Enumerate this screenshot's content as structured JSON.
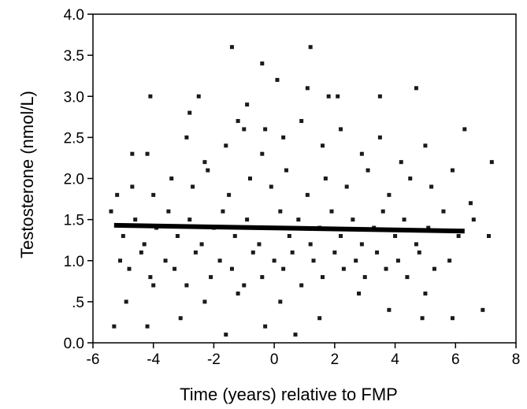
{
  "chart_data": {
    "type": "scatter",
    "title": "",
    "xlabel": "Time (years) relative to FMP",
    "ylabel": "Testosterone (nmol/L)",
    "xlim": [
      -6,
      8
    ],
    "ylim": [
      0.0,
      4.0
    ],
    "xticks": [
      -6,
      -4,
      -2,
      0,
      2,
      4,
      6,
      8
    ],
    "xtick_labels": [
      "-6",
      "-4",
      "-2",
      "0",
      "2",
      "4",
      "6",
      "8"
    ],
    "yticks": [
      0.0,
      0.5,
      1.0,
      1.5,
      2.0,
      2.5,
      3.0,
      3.5,
      4.0
    ],
    "ytick_labels": [
      "0.0",
      ".5",
      "1.0",
      "1.5",
      "2.0",
      "2.5",
      "3.0",
      "3.5",
      "4.0"
    ],
    "grid": false,
    "marker_color": "#1a1a1a",
    "series": [
      {
        "kind": "points",
        "points": [
          [
            -5.3,
            0.2
          ],
          [
            -4.2,
            0.2
          ],
          [
            -1.6,
            0.1
          ],
          [
            -0.3,
            0.2
          ],
          [
            0.7,
            0.1
          ],
          [
            4.9,
            0.3
          ],
          [
            5.9,
            0.3
          ],
          [
            6.9,
            0.4
          ],
          [
            -4.9,
            0.5
          ],
          [
            -4.0,
            0.7
          ],
          [
            -3.1,
            0.3
          ],
          [
            -2.3,
            0.5
          ],
          [
            -1.2,
            0.6
          ],
          [
            0.2,
            0.5
          ],
          [
            1.5,
            0.3
          ],
          [
            2.8,
            0.6
          ],
          [
            3.8,
            0.4
          ],
          [
            5.0,
            0.6
          ],
          [
            -5.1,
            1.0
          ],
          [
            -4.8,
            0.9
          ],
          [
            -4.4,
            1.1
          ],
          [
            -4.1,
            0.8
          ],
          [
            -3.6,
            1.0
          ],
          [
            -3.3,
            0.9
          ],
          [
            -2.9,
            0.7
          ],
          [
            -2.6,
            1.1
          ],
          [
            -2.1,
            0.8
          ],
          [
            -1.8,
            1.0
          ],
          [
            -1.4,
            0.9
          ],
          [
            -1.0,
            0.7
          ],
          [
            -0.7,
            1.1
          ],
          [
            -0.4,
            0.8
          ],
          [
            0.0,
            1.0
          ],
          [
            0.3,
            0.9
          ],
          [
            0.6,
            1.1
          ],
          [
            0.9,
            0.7
          ],
          [
            1.3,
            1.0
          ],
          [
            1.6,
            0.8
          ],
          [
            2.0,
            1.1
          ],
          [
            2.3,
            0.9
          ],
          [
            2.7,
            1.0
          ],
          [
            3.0,
            0.8
          ],
          [
            3.4,
            1.1
          ],
          [
            3.7,
            0.9
          ],
          [
            4.1,
            1.0
          ],
          [
            4.4,
            0.8
          ],
          [
            4.8,
            1.1
          ],
          [
            5.3,
            0.9
          ],
          [
            5.8,
            1.0
          ],
          [
            -5.4,
            1.6
          ],
          [
            -5.0,
            1.3
          ],
          [
            -4.6,
            1.5
          ],
          [
            -4.3,
            1.2
          ],
          [
            -3.9,
            1.4
          ],
          [
            -3.5,
            1.6
          ],
          [
            -3.2,
            1.3
          ],
          [
            -2.8,
            1.5
          ],
          [
            -2.4,
            1.2
          ],
          [
            -2.0,
            1.4
          ],
          [
            -1.7,
            1.6
          ],
          [
            -1.3,
            1.3
          ],
          [
            -0.9,
            1.5
          ],
          [
            -0.5,
            1.2
          ],
          [
            -0.2,
            1.4
          ],
          [
            0.2,
            1.6
          ],
          [
            0.5,
            1.3
          ],
          [
            0.8,
            1.5
          ],
          [
            1.2,
            1.2
          ],
          [
            1.5,
            1.4
          ],
          [
            1.9,
            1.6
          ],
          [
            2.2,
            1.3
          ],
          [
            2.6,
            1.5
          ],
          [
            2.9,
            1.2
          ],
          [
            3.3,
            1.4
          ],
          [
            3.6,
            1.6
          ],
          [
            4.0,
            1.3
          ],
          [
            4.3,
            1.5
          ],
          [
            4.7,
            1.2
          ],
          [
            5.1,
            1.4
          ],
          [
            5.6,
            1.6
          ],
          [
            6.1,
            1.3
          ],
          [
            6.6,
            1.5
          ],
          [
            7.1,
            1.3
          ],
          [
            -5.2,
            1.8
          ],
          [
            -4.7,
            1.9
          ],
          [
            -4.0,
            1.8
          ],
          [
            -3.4,
            2.0
          ],
          [
            -2.7,
            1.9
          ],
          [
            -2.2,
            2.1
          ],
          [
            -1.5,
            1.8
          ],
          [
            -0.8,
            2.0
          ],
          [
            -0.1,
            1.9
          ],
          [
            0.4,
            2.1
          ],
          [
            1.1,
            1.8
          ],
          [
            1.7,
            2.0
          ],
          [
            2.4,
            1.9
          ],
          [
            3.1,
            2.1
          ],
          [
            3.8,
            1.8
          ],
          [
            4.5,
            2.0
          ],
          [
            5.2,
            1.9
          ],
          [
            5.9,
            2.1
          ],
          [
            6.5,
            1.7
          ],
          [
            -4.7,
            2.3
          ],
          [
            -4.2,
            2.3
          ],
          [
            -2.9,
            2.5
          ],
          [
            -2.3,
            2.2
          ],
          [
            -1.6,
            2.4
          ],
          [
            -1.0,
            2.6
          ],
          [
            -0.4,
            2.3
          ],
          [
            0.3,
            2.5
          ],
          [
            0.9,
            2.7
          ],
          [
            1.6,
            2.4
          ],
          [
            2.2,
            2.6
          ],
          [
            2.9,
            2.3
          ],
          [
            3.5,
            2.5
          ],
          [
            4.2,
            2.2
          ],
          [
            5.0,
            2.4
          ],
          [
            6.3,
            2.6
          ],
          [
            7.2,
            2.2
          ],
          [
            -4.1,
            3.0
          ],
          [
            -2.8,
            2.8
          ],
          [
            -2.5,
            3.0
          ],
          [
            -1.2,
            2.7
          ],
          [
            -0.9,
            2.9
          ],
          [
            -0.3,
            2.6
          ],
          [
            1.1,
            3.1
          ],
          [
            1.8,
            3.0
          ],
          [
            2.1,
            3.0
          ],
          [
            3.5,
            3.0
          ],
          [
            4.7,
            3.1
          ],
          [
            -1.4,
            3.6
          ],
          [
            -0.4,
            3.4
          ],
          [
            0.1,
            3.2
          ],
          [
            1.2,
            3.6
          ]
        ]
      },
      {
        "kind": "trend_line",
        "x": [
          -5.3,
          6.3
        ],
        "y": [
          1.43,
          1.36
        ]
      }
    ]
  }
}
